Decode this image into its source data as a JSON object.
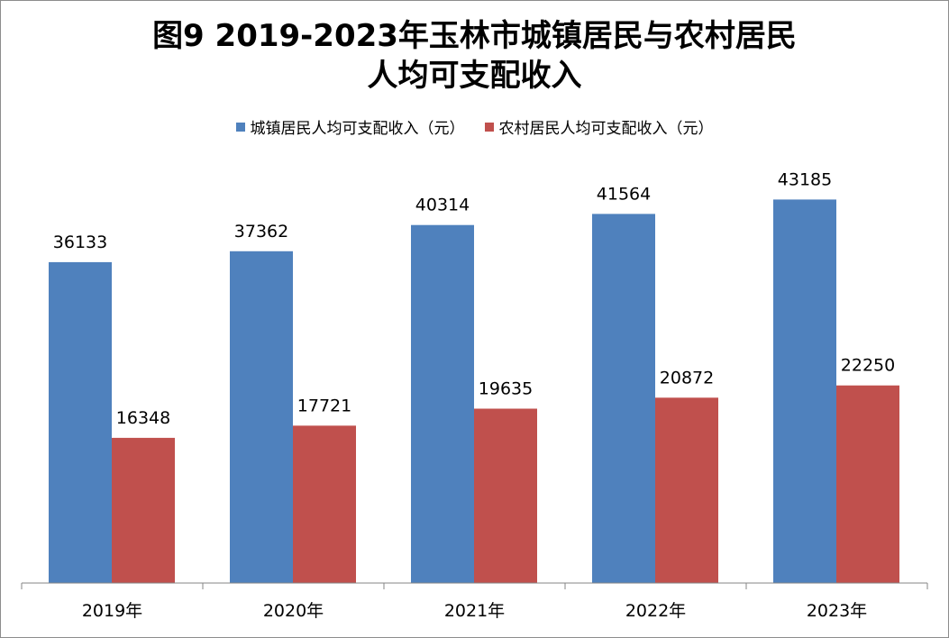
{
  "chart_data": {
    "type": "bar",
    "title_line1": "图9   2019-2023年玉林市城镇居民与农村居民",
    "title_line2": "人均可支配收入",
    "categories": [
      "2019年",
      "2020年",
      "2021年",
      "2022年",
      "2023年"
    ],
    "series": [
      {
        "name": "城镇居民人均可支配收入（元）",
        "color": "#4f81bd",
        "values": [
          36133,
          37362,
          40314,
          41564,
          43185
        ]
      },
      {
        "name": "农村居民人均可支配收入（元）",
        "color": "#c0504d",
        "values": [
          16348,
          17721,
          19635,
          20872,
          22250
        ]
      }
    ],
    "ylim": [
      0,
      50000
    ],
    "legend_position": "top",
    "grid": false,
    "data_labels": true
  }
}
